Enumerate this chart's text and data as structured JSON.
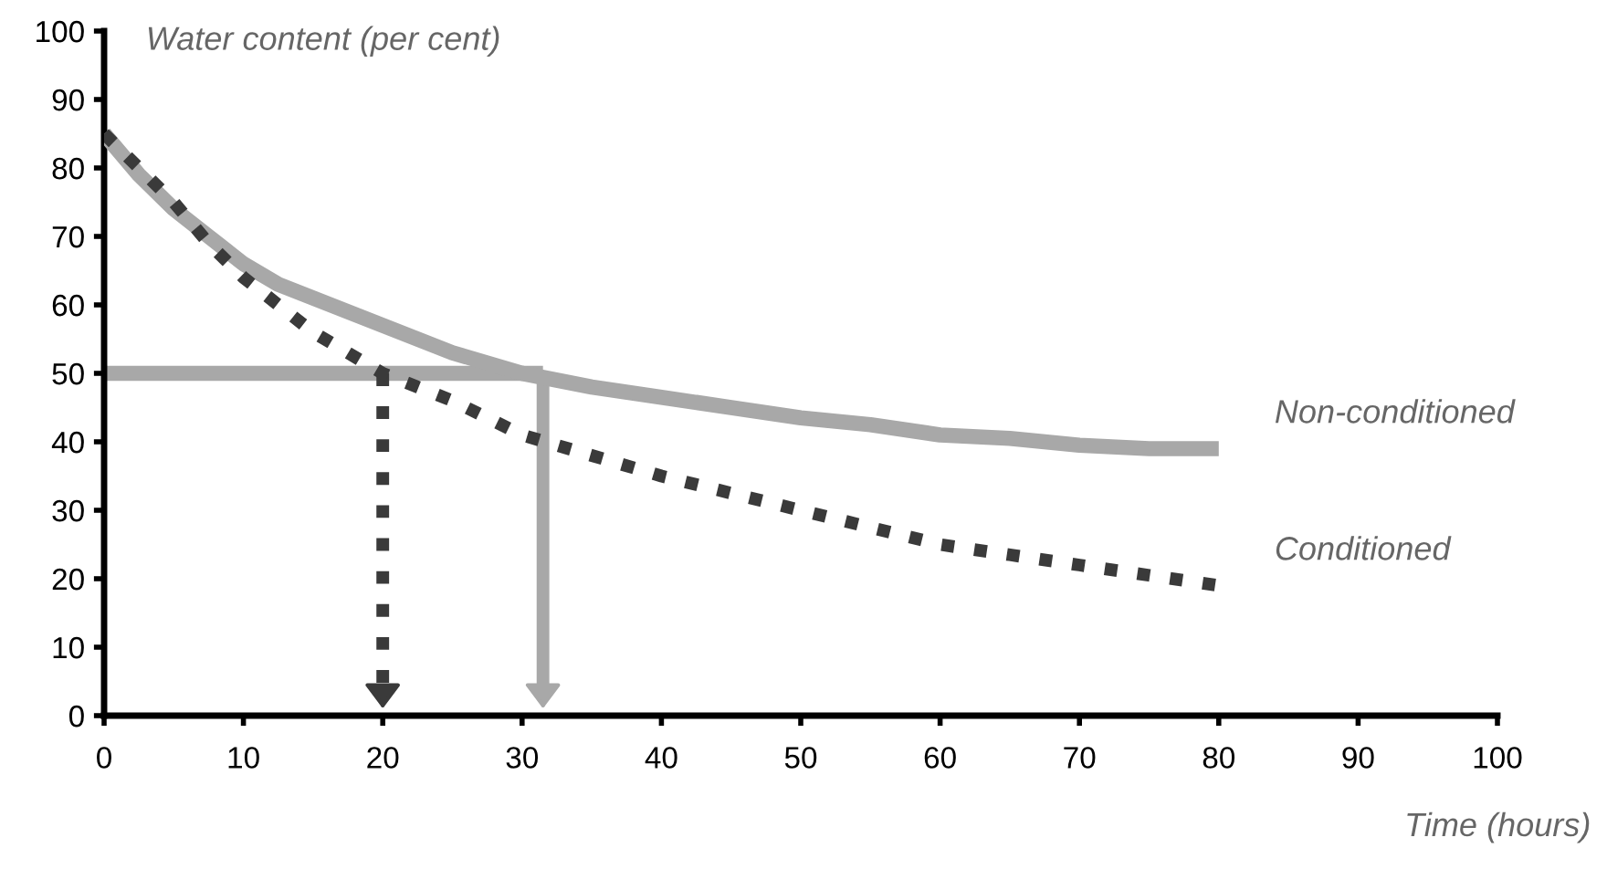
{
  "chart_data": {
    "type": "line",
    "xlabel": "Time (hours)",
    "ylabel": "Water content (per cent)",
    "x": [
      0,
      2.5,
      5,
      7.5,
      10,
      12.5,
      15,
      17.5,
      20,
      22.5,
      25,
      27.5,
      30,
      32.5,
      35,
      40,
      45,
      50,
      55,
      60,
      65,
      70,
      75,
      80
    ],
    "series": [
      {
        "name": "Non-conditioned",
        "color": "#a8a8a8",
        "line_style": "solid",
        "values": [
          85,
          79,
          74,
          70,
          66,
          63,
          61,
          59,
          57,
          55,
          53,
          51.5,
          50,
          49,
          48,
          46.5,
          45,
          43.5,
          42.5,
          41,
          40.5,
          39.5,
          39,
          39
        ]
      },
      {
        "name": "Conditioned",
        "color": "#3a3a3a",
        "line_style": "dotted",
        "values": [
          85,
          80,
          75,
          69,
          64,
          60,
          56,
          53,
          50,
          48,
          46,
          43.5,
          41,
          39.5,
          38,
          35,
          32.5,
          30,
          27.5,
          25,
          23.5,
          22,
          20.5,
          19
        ]
      }
    ],
    "ref_lines": [
      {
        "axis": "y",
        "value": 50,
        "color": "#a8a8a8",
        "line_style": "solid"
      },
      {
        "axis": "x",
        "value": 20,
        "color": "#3a3a3a",
        "line_style": "dotted"
      },
      {
        "axis": "x",
        "value": 31.5,
        "color": "#a8a8a8",
        "line_style": "solid"
      }
    ],
    "xlim": [
      0,
      100
    ],
    "ylim": [
      0,
      100
    ],
    "xticks": [
      0,
      10,
      20,
      30,
      40,
      50,
      60,
      70,
      80,
      90,
      100
    ],
    "yticks": [
      0,
      10,
      20,
      30,
      40,
      50,
      60,
      70,
      80,
      90,
      100
    ],
    "grid": false,
    "legend": false
  }
}
